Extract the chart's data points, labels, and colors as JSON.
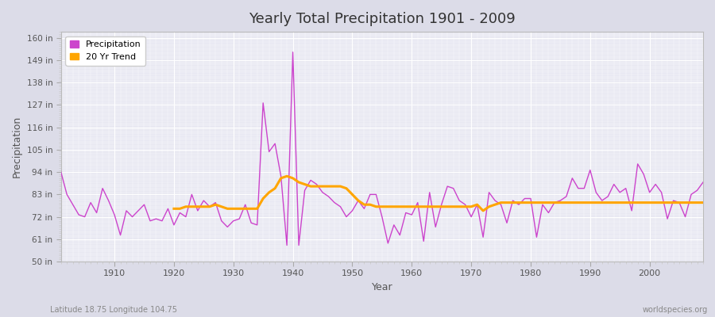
{
  "title": "Yearly Total Precipitation 1901 - 2009",
  "xlabel": "Year",
  "ylabel": "Precipitation",
  "footnote_left": "Latitude 18.75 Longitude 104.75",
  "footnote_right": "worldspecies.org",
  "ylim": [
    50,
    163
  ],
  "yticks": [
    50,
    61,
    72,
    83,
    94,
    105,
    116,
    127,
    138,
    149,
    160
  ],
  "ytick_labels": [
    "50 in",
    "61 in",
    "72 in",
    "83 in",
    "94 in",
    "105 in",
    "116 in",
    "127 in",
    "138 in",
    "149 in",
    "160 in"
  ],
  "xticks": [
    1910,
    1920,
    1930,
    1940,
    1950,
    1960,
    1970,
    1980,
    1990,
    2000
  ],
  "xlim": [
    1901,
    2009
  ],
  "precip_color": "#CC44CC",
  "trend_color": "#FFA500",
  "fig_bg_color": "#DCDCE8",
  "plot_bg_color": "#E8E8F2",
  "grid_color": "#FFFFFF",
  "years": [
    1901,
    1902,
    1903,
    1904,
    1905,
    1906,
    1907,
    1908,
    1909,
    1910,
    1911,
    1912,
    1913,
    1914,
    1915,
    1916,
    1917,
    1918,
    1919,
    1920,
    1921,
    1922,
    1923,
    1924,
    1925,
    1926,
    1927,
    1928,
    1929,
    1930,
    1931,
    1932,
    1933,
    1934,
    1935,
    1936,
    1937,
    1938,
    1939,
    1940,
    1941,
    1942,
    1943,
    1944,
    1945,
    1946,
    1947,
    1948,
    1949,
    1950,
    1951,
    1952,
    1953,
    1954,
    1955,
    1956,
    1957,
    1958,
    1959,
    1960,
    1961,
    1962,
    1963,
    1964,
    1965,
    1966,
    1967,
    1968,
    1969,
    1970,
    1971,
    1972,
    1973,
    1974,
    1975,
    1976,
    1977,
    1978,
    1979,
    1980,
    1981,
    1982,
    1983,
    1984,
    1985,
    1986,
    1987,
    1988,
    1989,
    1990,
    1991,
    1992,
    1993,
    1994,
    1995,
    1996,
    1997,
    1998,
    1999,
    2000,
    2001,
    2002,
    2003,
    2004,
    2005,
    2006,
    2007,
    2008,
    2009
  ],
  "precip": [
    94,
    83,
    78,
    73,
    72,
    79,
    74,
    86,
    80,
    73,
    63,
    75,
    72,
    75,
    78,
    70,
    71,
    70,
    76,
    68,
    74,
    72,
    83,
    75,
    80,
    77,
    79,
    70,
    67,
    70,
    71,
    78,
    69,
    68,
    128,
    104,
    108,
    92,
    58,
    153,
    58,
    85,
    90,
    88,
    84,
    82,
    79,
    77,
    72,
    75,
    80,
    76,
    83,
    83,
    72,
    59,
    68,
    63,
    74,
    73,
    79,
    60,
    84,
    67,
    78,
    87,
    86,
    80,
    78,
    72,
    78,
    62,
    84,
    80,
    78,
    69,
    80,
    78,
    81,
    81,
    62,
    78,
    74,
    79,
    80,
    82,
    91,
    86,
    86,
    95,
    84,
    80,
    82,
    88,
    84,
    86,
    75,
    98,
    93,
    84,
    88,
    84,
    71,
    80,
    79,
    72,
    83,
    85,
    89
  ],
  "trend_years": [
    1920,
    1921,
    1922,
    1923,
    1924,
    1925,
    1926,
    1927,
    1928,
    1929,
    1930,
    1931,
    1932,
    1933,
    1934,
    1935,
    1936,
    1937,
    1938,
    1939,
    1940,
    1941,
    1942,
    1943,
    1944,
    1945,
    1946,
    1947,
    1948,
    1949,
    1950,
    1951,
    1952,
    1953,
    1954,
    1955,
    1956,
    1957,
    1958,
    1959,
    1960,
    1961,
    1962,
    1963,
    1964,
    1965,
    1966,
    1967,
    1968,
    1969,
    1970,
    1971,
    1972,
    1973,
    1974,
    1975,
    1976,
    1977,
    1978,
    1979,
    1980,
    1981,
    1982,
    1983,
    1984,
    1985,
    1986,
    1987,
    1988,
    1989,
    1990,
    1991,
    1992,
    1993,
    1994,
    1995,
    1996,
    1997,
    1998,
    1999,
    2000,
    2001,
    2002,
    2003,
    2004,
    2005,
    2006,
    2007,
    2008,
    2009
  ],
  "trend": [
    76,
    76,
    77,
    77,
    77,
    77,
    77,
    78,
    77,
    76,
    76,
    76,
    76,
    76,
    76,
    81,
    84,
    86,
    91,
    92,
    91,
    89,
    88,
    87,
    87,
    87,
    87,
    87,
    87,
    86,
    83,
    80,
    78,
    78,
    77,
    77,
    77,
    77,
    77,
    77,
    77,
    77,
    77,
    77,
    77,
    77,
    77,
    77,
    77,
    77,
    77,
    78,
    75,
    77,
    78,
    79,
    79,
    79,
    79,
    79,
    79,
    79,
    79,
    79,
    79,
    79,
    79,
    79,
    79,
    79,
    79,
    79,
    79,
    79,
    79,
    79,
    79,
    79,
    79,
    79,
    79,
    79,
    79,
    79,
    79,
    79,
    79,
    79,
    79,
    79
  ]
}
